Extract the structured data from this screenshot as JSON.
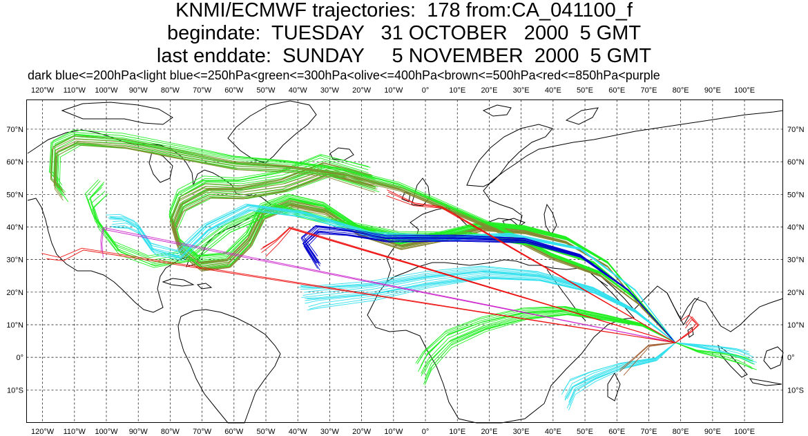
{
  "header": {
    "line1": "KNMI/ECMWF trajectories:  178 from:CA_041100_f",
    "line2": "begindate:  TUESDAY   31 OCTOBER   2000  5 GMT",
    "line3": "last enddate:  SUNDAY     5 NOVEMBER  2000  5 GMT",
    "legend": "dark blue<=200hPa<light blue<=250hPa<green<=300hPa<olive<=400hPa<brown<=500hPa<red<=850hPa<purple"
  },
  "map": {
    "lon_labels": [
      "120°W",
      "110°W",
      "100°W",
      "90°W",
      "80°W",
      "70°W",
      "60°W",
      "50°W",
      "40°W",
      "30°W",
      "20°W",
      "10°W",
      "0°",
      "10°E",
      "20°E",
      "30°E",
      "40°E",
      "50°E",
      "60°E",
      "70°E",
      "80°E",
      "90°E",
      "100°E"
    ],
    "lat_labels": [
      "70°N",
      "60°N",
      "50°N",
      "40°N",
      "30°N",
      "20°N",
      "10°N",
      "0°",
      "10°S"
    ],
    "lon_range": [
      -125,
      112
    ],
    "lat_range": [
      -20,
      79
    ],
    "pressure_colors": {
      "dark_blue": "#0000cc",
      "light_blue": "#33e0ee",
      "green": "#22ee22",
      "olive": "#888833",
      "brown": "#a05a2c",
      "red": "#ee1111",
      "purple": "#cc22cc"
    }
  }
}
